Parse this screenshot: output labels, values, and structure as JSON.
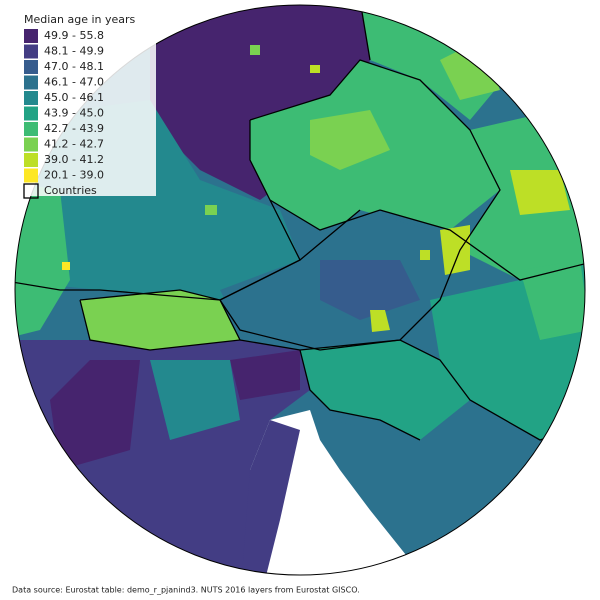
{
  "legend": {
    "title": "Median age in years",
    "items": [
      {
        "label": "49.9 - 55.8",
        "color": "#46246e"
      },
      {
        "label": "48.1 - 49.9",
        "color": "#433d84"
      },
      {
        "label": "47.0 - 48.1",
        "color": "#365c8d"
      },
      {
        "label": "46.1 - 47.0",
        "color": "#2c728e"
      },
      {
        "label": "45.0 - 46.1",
        "color": "#23898e"
      },
      {
        "label": "43.9 - 45.0",
        "color": "#22a385"
      },
      {
        "label": "42.7 - 43.9",
        "color": "#3dbc74"
      },
      {
        "label": "41.2 - 42.7",
        "color": "#7ad151"
      },
      {
        "label": "39.0 - 41.2",
        "color": "#bddf26"
      },
      {
        "label": "20.1 - 39.0",
        "color": "#fde725"
      }
    ],
    "countries": "Countries"
  },
  "source": "Data source: Eurostat table: demo_r_pjanind3. NUTS 2016 layers from Eurostat GISCO."
}
